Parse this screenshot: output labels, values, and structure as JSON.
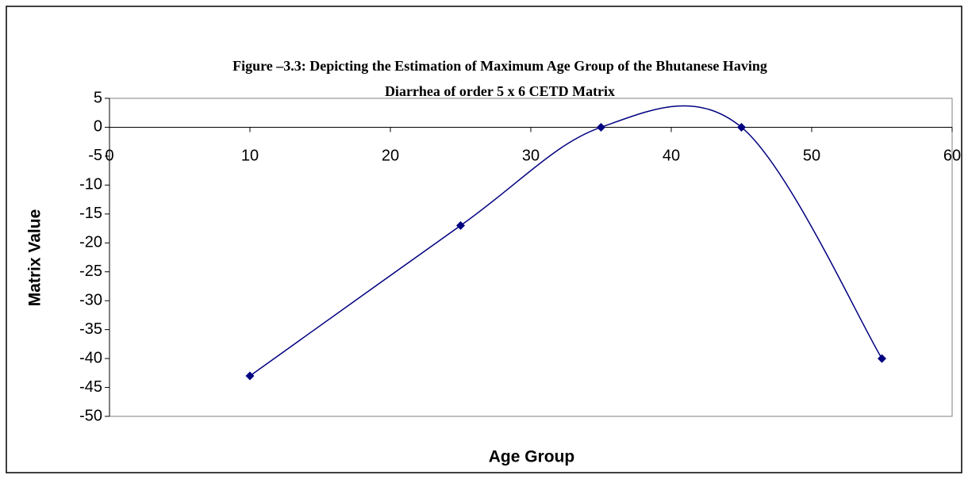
{
  "chart_data": {
    "type": "line",
    "title": [
      "Figure –3.3: Depicting the Estimation of Maximum Age Group of the Bhutanese Having",
      "Diarrhea of order 5 x 6 CETD Matrix"
    ],
    "x_label": "Age Group",
    "y_label": "Matrix Value",
    "x": [
      10,
      25,
      35,
      45,
      55
    ],
    "series": [
      {
        "name": "Matrix Value",
        "color": "#000080",
        "values": [
          -43,
          -17,
          0,
          0,
          -40
        ]
      }
    ],
    "xlim": [
      0,
      60
    ],
    "xticks": [
      0,
      10,
      20,
      30,
      40,
      50,
      60
    ],
    "ylim": [
      -50,
      5
    ],
    "yticks": [
      5,
      0,
      -5,
      -10,
      -15,
      -20,
      -25,
      -30,
      -35,
      -40,
      -45,
      -50
    ],
    "smooth": true,
    "legend": false
  }
}
